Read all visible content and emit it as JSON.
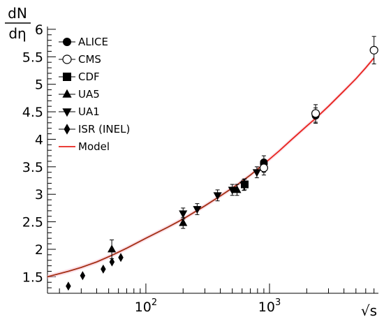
{
  "chart_data": {
    "type": "scatter",
    "title": "",
    "xlabel": "√s",
    "ylabel_num": "dN",
    "ylabel_den": "dη",
    "x_scale": "log",
    "xlim": [
      16,
      7600
    ],
    "ylim": [
      1.2,
      6.05
    ],
    "x_ticks": [
      {
        "value": 100,
        "label_base": "10",
        "label_exp": "2"
      },
      {
        "value": 1000,
        "label_base": "10",
        "label_exp": "3"
      }
    ],
    "y_ticks": [
      {
        "value": 1.5,
        "label": "1.5"
      },
      {
        "value": 2,
        "label": "2"
      },
      {
        "value": 2.5,
        "label": "2.5"
      },
      {
        "value": 3,
        "label": "3"
      },
      {
        "value": 3.5,
        "label": "3.5"
      },
      {
        "value": 4,
        "label": "4"
      },
      {
        "value": 4.5,
        "label": "4.5"
      },
      {
        "value": 5,
        "label": "5"
      },
      {
        "value": 5.5,
        "label": "5.5"
      },
      {
        "value": 6,
        "label": "6"
      }
    ],
    "legend_position": "top-left",
    "series": [
      {
        "name": "ALICE",
        "marker": "circle-filled",
        "color": "#000000",
        "points": [
          {
            "x": 900,
            "y": 3.58,
            "err": 0.12
          },
          {
            "x": 2360,
            "y": 4.43,
            "err": 0.14
          }
        ]
      },
      {
        "name": "CMS",
        "marker": "circle-open",
        "color": "#000000",
        "points": [
          {
            "x": 900,
            "y": 3.48,
            "err": 0.13
          },
          {
            "x": 2360,
            "y": 4.47,
            "err": 0.16
          },
          {
            "x": 7000,
            "y": 5.62,
            "err": 0.25
          }
        ]
      },
      {
        "name": "CDF",
        "marker": "square",
        "color": "#000000",
        "points": [
          {
            "x": 630,
            "y": 3.18,
            "err": 0.1
          }
        ]
      },
      {
        "name": "UA5",
        "marker": "triangle-up",
        "color": "#000000",
        "points": [
          {
            "x": 53,
            "y": 2.0,
            "err": 0.17
          },
          {
            "x": 200,
            "y": 2.48,
            "err": 0.1
          },
          {
            "x": 546,
            "y": 3.08,
            "err": 0.1
          }
        ]
      },
      {
        "name": "UA1",
        "marker": "triangle-down",
        "color": "#000000",
        "points": [
          {
            "x": 200,
            "y": 2.65,
            "err": 0.1
          },
          {
            "x": 260,
            "y": 2.73,
            "err": 0.1
          },
          {
            "x": 380,
            "y": 2.98,
            "err": 0.1
          },
          {
            "x": 500,
            "y": 3.08,
            "err": 0.1
          },
          {
            "x": 620,
            "y": 3.17,
            "err": 0.1
          },
          {
            "x": 790,
            "y": 3.4,
            "err": 0.1
          },
          {
            "x": 900,
            "y": 3.5,
            "err": 0.1
          }
        ]
      },
      {
        "name": "ISR (INEL)",
        "marker": "diamond",
        "color": "#000000",
        "points": [
          {
            "x": 23.6,
            "y": 1.33
          },
          {
            "x": 30.8,
            "y": 1.52
          },
          {
            "x": 45.2,
            "y": 1.64
          },
          {
            "x": 53.2,
            "y": 1.77
          },
          {
            "x": 62.7,
            "y": 1.85
          }
        ]
      },
      {
        "name": "Model",
        "marker": "line",
        "color": "#e8231c",
        "points": [
          {
            "x": 16,
            "y": 1.5
          },
          {
            "x": 23.6,
            "y": 1.6
          },
          {
            "x": 30,
            "y": 1.67
          },
          {
            "x": 40,
            "y": 1.77
          },
          {
            "x": 53,
            "y": 1.89
          },
          {
            "x": 70,
            "y": 2.02
          },
          {
            "x": 100,
            "y": 2.2
          },
          {
            "x": 150,
            "y": 2.4
          },
          {
            "x": 200,
            "y": 2.55
          },
          {
            "x": 300,
            "y": 2.79
          },
          {
            "x": 400,
            "y": 2.97
          },
          {
            "x": 546,
            "y": 3.17
          },
          {
            "x": 700,
            "y": 3.35
          },
          {
            "x": 900,
            "y": 3.55
          },
          {
            "x": 1200,
            "y": 3.79
          },
          {
            "x": 1500,
            "y": 3.99
          },
          {
            "x": 2000,
            "y": 4.24
          },
          {
            "x": 2360,
            "y": 4.38
          },
          {
            "x": 3000,
            "y": 4.6
          },
          {
            "x": 4000,
            "y": 4.88
          },
          {
            "x": 5000,
            "y": 5.1
          },
          {
            "x": 6000,
            "y": 5.3
          },
          {
            "x": 7000,
            "y": 5.48
          }
        ]
      }
    ]
  }
}
